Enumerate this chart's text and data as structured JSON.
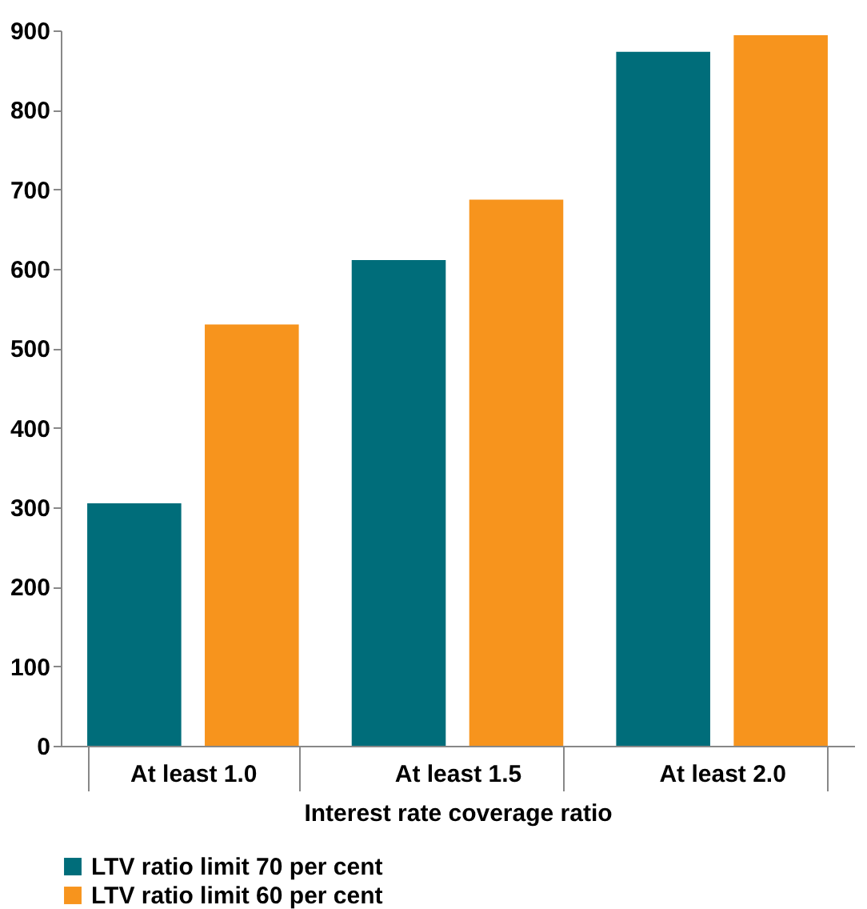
{
  "chart_data": {
    "type": "bar",
    "xlabel": "Interest rate coverage ratio",
    "categories": [
      "At least 1.0",
      "At least 1.5",
      "At least 2.0"
    ],
    "series": [
      {
        "name": "LTV ratio limit 70 per cent",
        "color": "#006d7a",
        "values": [
          305,
          611,
          873
        ]
      },
      {
        "name": "LTV ratio limit 60 per cent",
        "color": "#f7941d",
        "values": [
          530,
          687,
          894
        ]
      }
    ],
    "ylim": [
      0,
      900
    ],
    "yticks": [
      0,
      100,
      200,
      300,
      400,
      500,
      600,
      700,
      800,
      900
    ],
    "grid": false,
    "legend": "bottom"
  }
}
